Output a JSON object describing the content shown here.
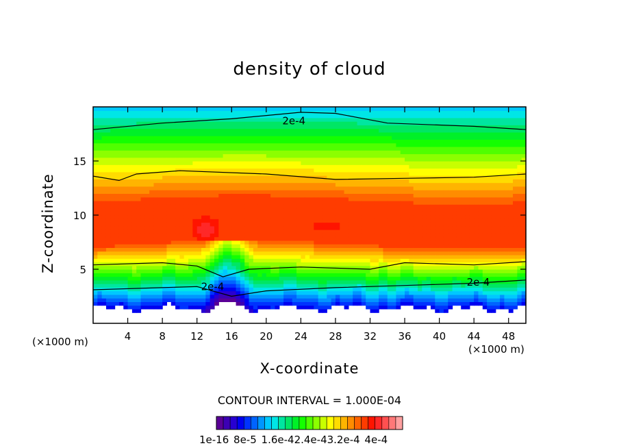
{
  "chart_data": {
    "type": "heatmap",
    "title": "density of cloud",
    "xlabel": "X-coordinate",
    "ylabel": "Z-coordinate",
    "x_unit": "(×1000 m)",
    "y_unit": "(×1000 m)",
    "xlim": [
      0,
      50
    ],
    "ylim": [
      0,
      20
    ],
    "x_ticks": [
      4,
      8,
      12,
      16,
      20,
      24,
      28,
      32,
      36,
      40,
      44,
      48
    ],
    "y_ticks": [
      5,
      10,
      15
    ],
    "contour_interval_text": "CONTOUR INTERVAL = 1.000E-04",
    "contour_labels": [
      "2e-4",
      "2e-4",
      "2e-4"
    ],
    "colorbar_labels": "1e-16 8e-5 1.6e-42.4e-43.2e-4 4e-4",
    "colorbar_min": 0,
    "colorbar_max": 0.0004,
    "colors": [
      "#5a0096",
      "#3c00b4",
      "#2800d2",
      "#0000f0",
      "#0032ff",
      "#0064ff",
      "#0096ff",
      "#00c8ff",
      "#00e6e6",
      "#00e6a0",
      "#00e664",
      "#00f028",
      "#14ff00",
      "#50ff00",
      "#8cff00",
      "#c8ff00",
      "#ffff00",
      "#ffdc00",
      "#ffb400",
      "#ff8c00",
      "#ff6400",
      "#ff3c00",
      "#ff1400",
      "#ff2828",
      "#ff5050",
      "#ff7878",
      "#ffa0a0"
    ]
  }
}
